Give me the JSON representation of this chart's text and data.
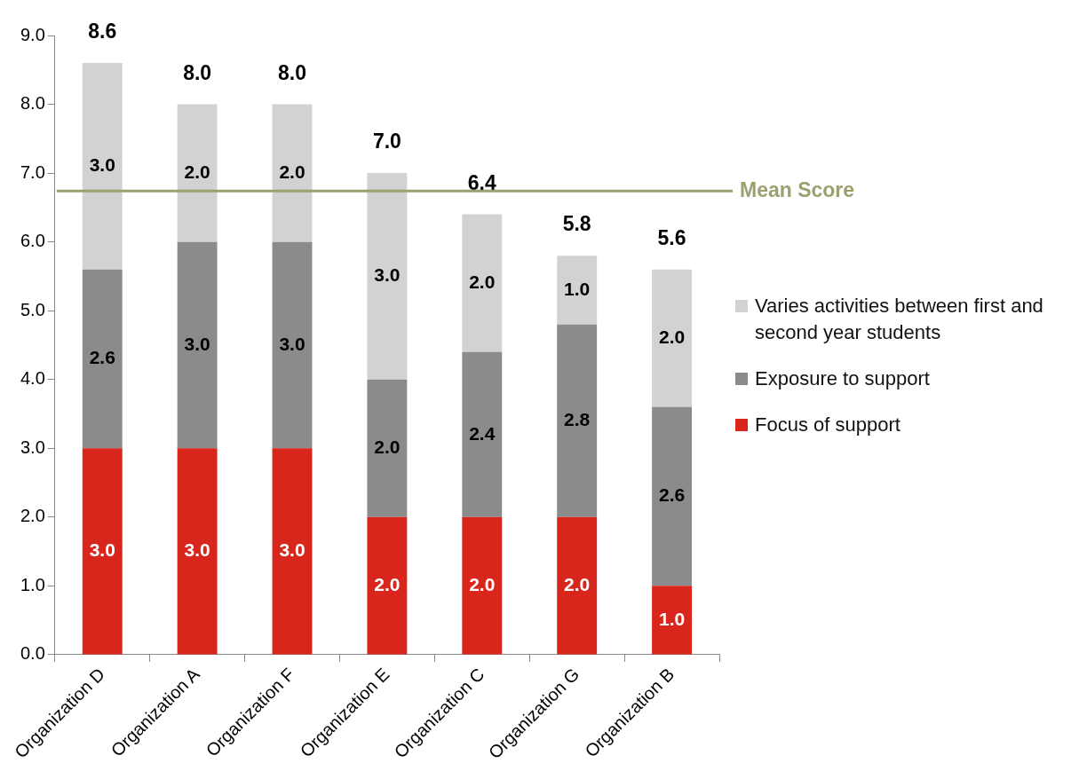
{
  "chart_data": {
    "type": "bar",
    "stacked": true,
    "categories": [
      "Organization D",
      "Organization A",
      "Organization F",
      "Organization E",
      "Organization C",
      "Organization G",
      "Organization B"
    ],
    "series": [
      {
        "name": "Focus of support",
        "color": "#d9261c",
        "values": [
          3.0,
          3.0,
          3.0,
          2.0,
          2.0,
          2.0,
          1.0
        ],
        "value_labels": [
          "3.0",
          "3.0",
          "3.0",
          "2.0",
          "2.0",
          "2.0",
          "1.0"
        ]
      },
      {
        "name": "Exposure to support",
        "color": "#8a8c8c",
        "values": [
          2.6,
          3.0,
          3.0,
          2.0,
          2.4,
          2.8,
          2.6
        ],
        "value_labels": [
          "2.6",
          "3.0",
          "3.0",
          "2.0",
          "2.4",
          "2.8",
          "2.6"
        ]
      },
      {
        "name": "Varies activities between first and second year students",
        "color": "#d0d2d3",
        "values": [
          3.0,
          2.0,
          2.0,
          3.0,
          2.0,
          1.0,
          2.0
        ],
        "value_labels": [
          "3.0",
          "2.0",
          "2.0",
          "3.0",
          "2.0",
          "1.0",
          "2.0"
        ]
      }
    ],
    "ylim": [
      0,
      9
    ],
    "yticks": [
      {
        "value": 0,
        "label": "0.0"
      },
      {
        "value": 1,
        "label": "1.0"
      },
      {
        "value": 2,
        "label": "2.0"
      },
      {
        "value": 3,
        "label": "3.0"
      },
      {
        "value": 4,
        "label": "4.0"
      },
      {
        "value": 5,
        "label": "5.0"
      },
      {
        "value": 6,
        "label": "6.0"
      },
      {
        "value": 7,
        "label": "7.0"
      },
      {
        "value": 8,
        "label": "8.0"
      },
      {
        "value": 9,
        "label": "9.0"
      }
    ],
    "totals": [
      "8.6",
      "8.0",
      "8.0",
      "7.0",
      "6.4",
      "5.8",
      "5.6"
    ],
    "ref_lines": [
      {
        "axis": "y",
        "value": 6.74,
        "label": "Mean Score",
        "color": "#9c9f6e"
      }
    ],
    "grid": false,
    "legend": "right"
  }
}
